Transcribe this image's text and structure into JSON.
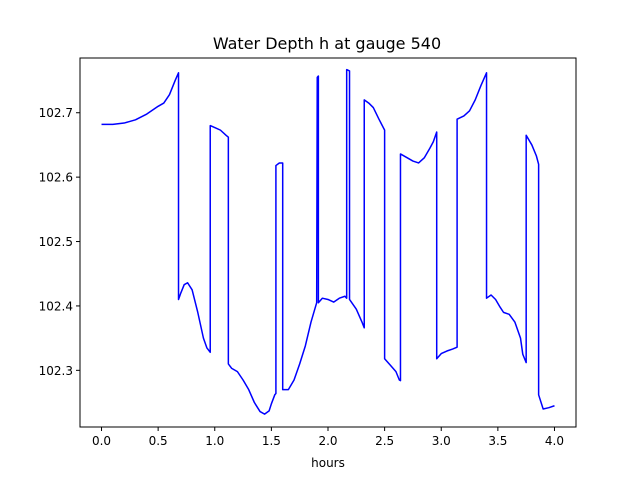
{
  "chart_data": {
    "type": "line",
    "title": "Water Depth h at gauge 540",
    "xlabel": "hours",
    "ylabel": "",
    "xlim": [
      -0.19,
      4.19
    ],
    "ylim": [
      102.212,
      102.785
    ],
    "xticks": [
      0.0,
      0.5,
      1.0,
      1.5,
      2.0,
      2.5,
      3.0,
      3.5,
      4.0
    ],
    "xtick_labels": [
      "0.0",
      "0.5",
      "1.0",
      "1.5",
      "2.0",
      "2.5",
      "3.0",
      "3.5",
      "4.0"
    ],
    "yticks": [
      102.3,
      102.4,
      102.5,
      102.6,
      102.7
    ],
    "ytick_labels": [
      "102.3",
      "102.4",
      "102.5",
      "102.6",
      "102.7"
    ],
    "grid": false,
    "legend": "none",
    "series": [
      {
        "color": "#0000ff",
        "points": [
          [
            0.0,
            102.682
          ],
          [
            0.1,
            102.682
          ],
          [
            0.2,
            102.684
          ],
          [
            0.3,
            102.689
          ],
          [
            0.4,
            102.698
          ],
          [
            0.5,
            102.71
          ],
          [
            0.55,
            102.715
          ],
          [
            0.6,
            102.728
          ],
          [
            0.65,
            102.75
          ],
          [
            0.68,
            102.762
          ],
          [
            0.68,
            102.41
          ],
          [
            0.7,
            102.42
          ],
          [
            0.73,
            102.433
          ],
          [
            0.76,
            102.436
          ],
          [
            0.8,
            102.425
          ],
          [
            0.85,
            102.39
          ],
          [
            0.9,
            102.35
          ],
          [
            0.93,
            102.335
          ],
          [
            0.96,
            102.328
          ],
          [
            0.96,
            102.68
          ],
          [
            1.0,
            102.677
          ],
          [
            1.05,
            102.673
          ],
          [
            1.1,
            102.665
          ],
          [
            1.12,
            102.662
          ],
          [
            1.12,
            102.31
          ],
          [
            1.15,
            102.303
          ],
          [
            1.2,
            102.298
          ],
          [
            1.25,
            102.285
          ],
          [
            1.3,
            102.27
          ],
          [
            1.35,
            102.25
          ],
          [
            1.4,
            102.236
          ],
          [
            1.44,
            102.232
          ],
          [
            1.48,
            102.237
          ],
          [
            1.5,
            102.248
          ],
          [
            1.53,
            102.262
          ],
          [
            1.54,
            102.264
          ],
          [
            1.54,
            102.618
          ],
          [
            1.57,
            102.622
          ],
          [
            1.6,
            102.622
          ],
          [
            1.6,
            102.27
          ],
          [
            1.65,
            102.27
          ],
          [
            1.7,
            102.285
          ],
          [
            1.75,
            102.31
          ],
          [
            1.8,
            102.338
          ],
          [
            1.85,
            102.375
          ],
          [
            1.9,
            102.405
          ],
          [
            1.905,
            102.755
          ],
          [
            1.915,
            102.757
          ],
          [
            1.915,
            102.405
          ],
          [
            1.95,
            102.412
          ],
          [
            2.0,
            102.41
          ],
          [
            2.05,
            102.406
          ],
          [
            2.1,
            102.412
          ],
          [
            2.15,
            102.415
          ],
          [
            2.165,
            102.412
          ],
          [
            2.165,
            102.767
          ],
          [
            2.19,
            102.765
          ],
          [
            2.19,
            102.41
          ],
          [
            2.25,
            102.395
          ],
          [
            2.3,
            102.375
          ],
          [
            2.32,
            102.366
          ],
          [
            2.32,
            102.72
          ],
          [
            2.36,
            102.715
          ],
          [
            2.4,
            102.708
          ],
          [
            2.45,
            102.69
          ],
          [
            2.5,
            102.673
          ],
          [
            2.5,
            102.318
          ],
          [
            2.55,
            102.308
          ],
          [
            2.6,
            102.298
          ],
          [
            2.63,
            102.285
          ],
          [
            2.64,
            102.284
          ],
          [
            2.64,
            102.636
          ],
          [
            2.7,
            102.63
          ],
          [
            2.75,
            102.625
          ],
          [
            2.8,
            102.622
          ],
          [
            2.85,
            102.63
          ],
          [
            2.9,
            102.645
          ],
          [
            2.93,
            102.655
          ],
          [
            2.96,
            102.67
          ],
          [
            2.96,
            102.318
          ],
          [
            3.0,
            102.326
          ],
          [
            3.05,
            102.33
          ],
          [
            3.1,
            102.333
          ],
          [
            3.14,
            102.336
          ],
          [
            3.14,
            102.69
          ],
          [
            3.2,
            102.695
          ],
          [
            3.25,
            102.703
          ],
          [
            3.3,
            102.72
          ],
          [
            3.35,
            102.742
          ],
          [
            3.4,
            102.762
          ],
          [
            3.4,
            102.412
          ],
          [
            3.44,
            102.417
          ],
          [
            3.48,
            102.41
          ],
          [
            3.52,
            102.398
          ],
          [
            3.55,
            102.39
          ],
          [
            3.6,
            102.387
          ],
          [
            3.65,
            102.375
          ],
          [
            3.7,
            102.35
          ],
          [
            3.72,
            102.325
          ],
          [
            3.75,
            102.312
          ],
          [
            3.75,
            102.665
          ],
          [
            3.8,
            102.65
          ],
          [
            3.84,
            102.633
          ],
          [
            3.86,
            102.62
          ],
          [
            3.86,
            102.262
          ],
          [
            3.9,
            102.24
          ],
          [
            3.95,
            102.242
          ],
          [
            4.0,
            102.245
          ]
        ]
      }
    ]
  }
}
